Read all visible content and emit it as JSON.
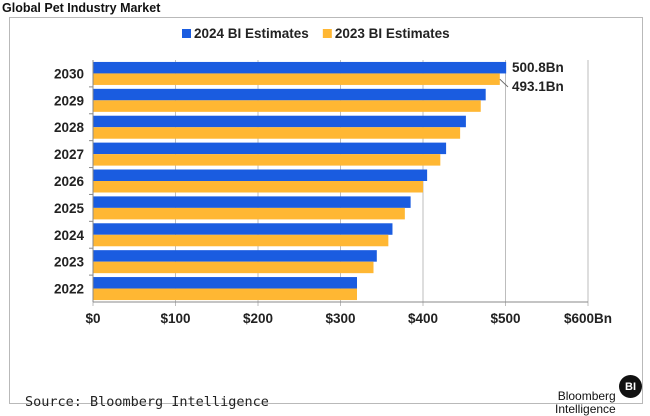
{
  "title": "Global Pet Industry Market",
  "source": "Source: Bloomberg Intelligence",
  "brand": {
    "line1": "Bloomberg",
    "line2": "Intelligence",
    "logo": "BI"
  },
  "chart_data": {
    "type": "bar",
    "orientation": "horizontal",
    "categories": [
      "2030",
      "2029",
      "2028",
      "2027",
      "2026",
      "2025",
      "2024",
      "2023",
      "2022"
    ],
    "series": [
      {
        "name": "2024 BI Estimates",
        "color": "#1a5ce0",
        "values": [
          500.8,
          476,
          452,
          428,
          405,
          385,
          363,
          344,
          320
        ]
      },
      {
        "name": "2023 BI Estimates",
        "color": "#ffb733",
        "values": [
          493.1,
          470,
          445,
          421,
          400,
          378,
          358,
          340,
          320
        ]
      }
    ],
    "data_labels": [
      "500.8Bn",
      "493.1Bn"
    ],
    "x_ticks": [
      {
        "value": 0,
        "label": "$0"
      },
      {
        "value": 100,
        "label": "$100"
      },
      {
        "value": 200,
        "label": "$200"
      },
      {
        "value": 300,
        "label": "$300"
      },
      {
        "value": 400,
        "label": "$400"
      },
      {
        "value": 500,
        "label": "$500"
      },
      {
        "value": 600,
        "label": "$600Bn"
      }
    ],
    "xlim": [
      0,
      600
    ],
    "grid": "vertical",
    "legend": "top-center",
    "xlabel": "",
    "ylabel": ""
  }
}
